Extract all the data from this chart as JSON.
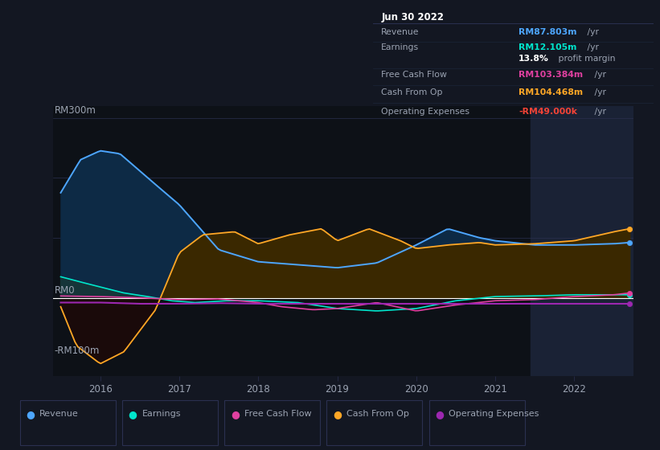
{
  "bg_color": "#131722",
  "plot_bg_color": "#0d1117",
  "highlight_bg_color": "#1a2235",
  "text_color": "#9ba3b2",
  "grid_color": "#2a3050",
  "zero_line_color": "#ffffff",
  "title_box": {
    "date": "Jun 30 2022",
    "rows": [
      {
        "label": "Revenue",
        "value": "RM87.803m",
        "suffix": " /yr",
        "value_color": "#4da6ff"
      },
      {
        "label": "Earnings",
        "value": "RM12.105m",
        "suffix": " /yr",
        "value_color": "#00e5cc"
      },
      {
        "label": "",
        "value": "13.8%",
        "suffix": " profit margin",
        "value_color": "#ffffff"
      },
      {
        "label": "Free Cash Flow",
        "value": "RM103.384m",
        "suffix": " /yr",
        "value_color": "#e040a0"
      },
      {
        "label": "Cash From Op",
        "value": "RM104.468m",
        "suffix": " /yr",
        "value_color": "#ffa726"
      },
      {
        "label": "Operating Expenses",
        "value": "-RM49.000k",
        "suffix": " /yr",
        "value_color": "#f44336"
      }
    ]
  },
  "series": {
    "revenue": {
      "color": "#4da6ff",
      "fill_color": "#0d2a45",
      "label": "Revenue"
    },
    "earnings": {
      "color": "#00e5cc",
      "fill_color": "#1a3a35",
      "label": "Earnings"
    },
    "free_cash_flow": {
      "color": "#e040a0",
      "label": "Free Cash Flow"
    },
    "cash_from_op": {
      "color": "#ffa726",
      "fill_color": "#3a2800",
      "label": "Cash From Op"
    },
    "operating_expenses": {
      "color": "#9c27b0",
      "label": "Operating Expenses"
    }
  },
  "xlim": [
    2015.4,
    2022.75
  ],
  "ylim": [
    -130,
    320
  ],
  "highlight_start": 2021.45,
  "highlight_end": 2022.75,
  "xticks": [
    2016,
    2017,
    2018,
    2019,
    2020,
    2021,
    2022
  ],
  "legend_items": [
    {
      "label": "Revenue",
      "color": "#4da6ff"
    },
    {
      "label": "Earnings",
      "color": "#00e5cc"
    },
    {
      "label": "Free Cash Flow",
      "color": "#e040a0"
    },
    {
      "label": "Cash From Op",
      "color": "#ffa726"
    },
    {
      "label": "Operating Expenses",
      "color": "#9c27b0"
    }
  ]
}
